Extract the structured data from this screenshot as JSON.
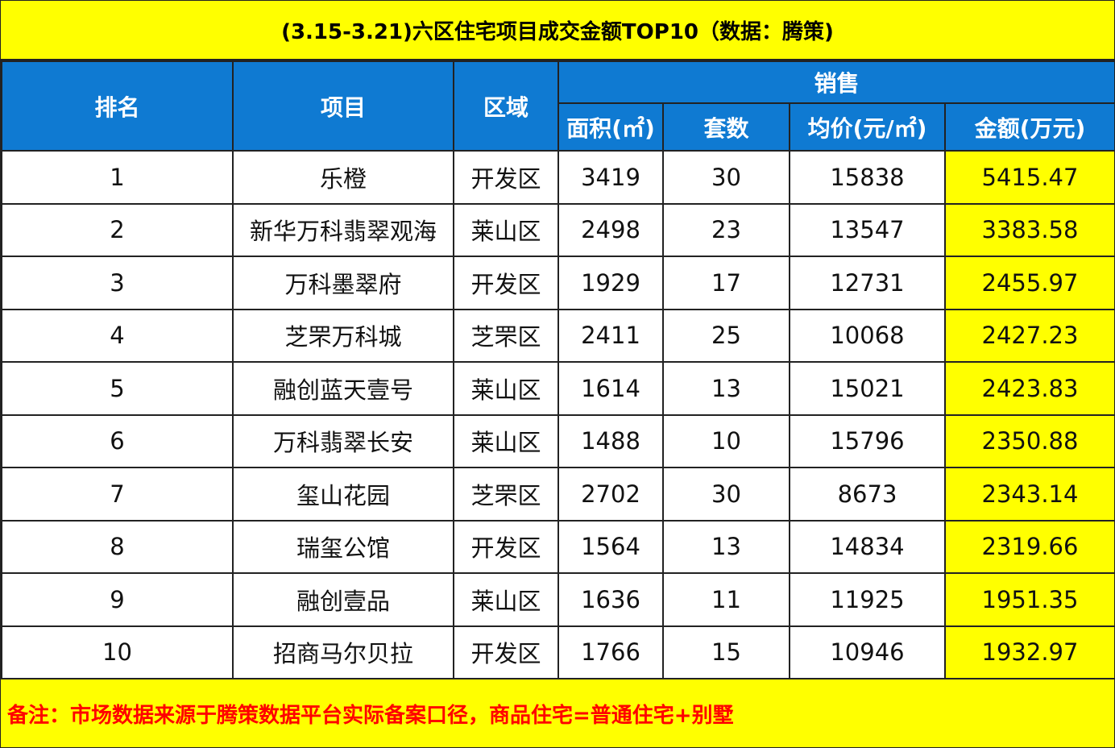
{
  "title": "(3.15-3.21)六区住宅项目成交金额TOP10（数据：腾策)",
  "colors": {
    "header_bg": "#0f7ad2",
    "highlight": "#ffff00",
    "note_text": "#ff0000"
  },
  "headers": {
    "rank": "排名",
    "project": "项目",
    "district": "区域",
    "sales": "销售",
    "area": "面积(㎡)",
    "units": "套数",
    "avg_price": "均价(元/㎡)",
    "amount": "金额(万元)"
  },
  "rows": [
    {
      "rank": "1",
      "project": "乐橙",
      "district": "开发区",
      "area": "3419",
      "units": "30",
      "avg_price": "15838",
      "amount": "5415.47"
    },
    {
      "rank": "2",
      "project": "新华万科翡翠观海",
      "district": "莱山区",
      "area": "2498",
      "units": "23",
      "avg_price": "13547",
      "amount": "3383.58"
    },
    {
      "rank": "3",
      "project": "万科墨翠府",
      "district": "开发区",
      "area": "1929",
      "units": "17",
      "avg_price": "12731",
      "amount": "2455.97"
    },
    {
      "rank": "4",
      "project": "芝罘万科城",
      "district": "芝罘区",
      "area": "2411",
      "units": "25",
      "avg_price": "10068",
      "amount": "2427.23"
    },
    {
      "rank": "5",
      "project": "融创蓝天壹号",
      "district": "莱山区",
      "area": "1614",
      "units": "13",
      "avg_price": "15021",
      "amount": "2423.83"
    },
    {
      "rank": "6",
      "project": "万科翡翠长安",
      "district": "莱山区",
      "area": "1488",
      "units": "10",
      "avg_price": "15796",
      "amount": "2350.88"
    },
    {
      "rank": "7",
      "project": "玺山花园",
      "district": "芝罘区",
      "area": "2702",
      "units": "30",
      "avg_price": "8673",
      "amount": "2343.14"
    },
    {
      "rank": "8",
      "project": "瑞玺公馆",
      "district": "开发区",
      "area": "1564",
      "units": "13",
      "avg_price": "14834",
      "amount": "2319.66"
    },
    {
      "rank": "9",
      "project": "融创壹品",
      "district": "莱山区",
      "area": "1636",
      "units": "11",
      "avg_price": "11925",
      "amount": "1951.35"
    },
    {
      "rank": "10",
      "project": "招商马尔贝拉",
      "district": "开发区",
      "area": "1766",
      "units": "15",
      "avg_price": "10946",
      "amount": "1932.97"
    }
  ],
  "note": "备注：市场数据来源于腾策数据平台实际备案口径，商品住宅=普通住宅+别墅"
}
